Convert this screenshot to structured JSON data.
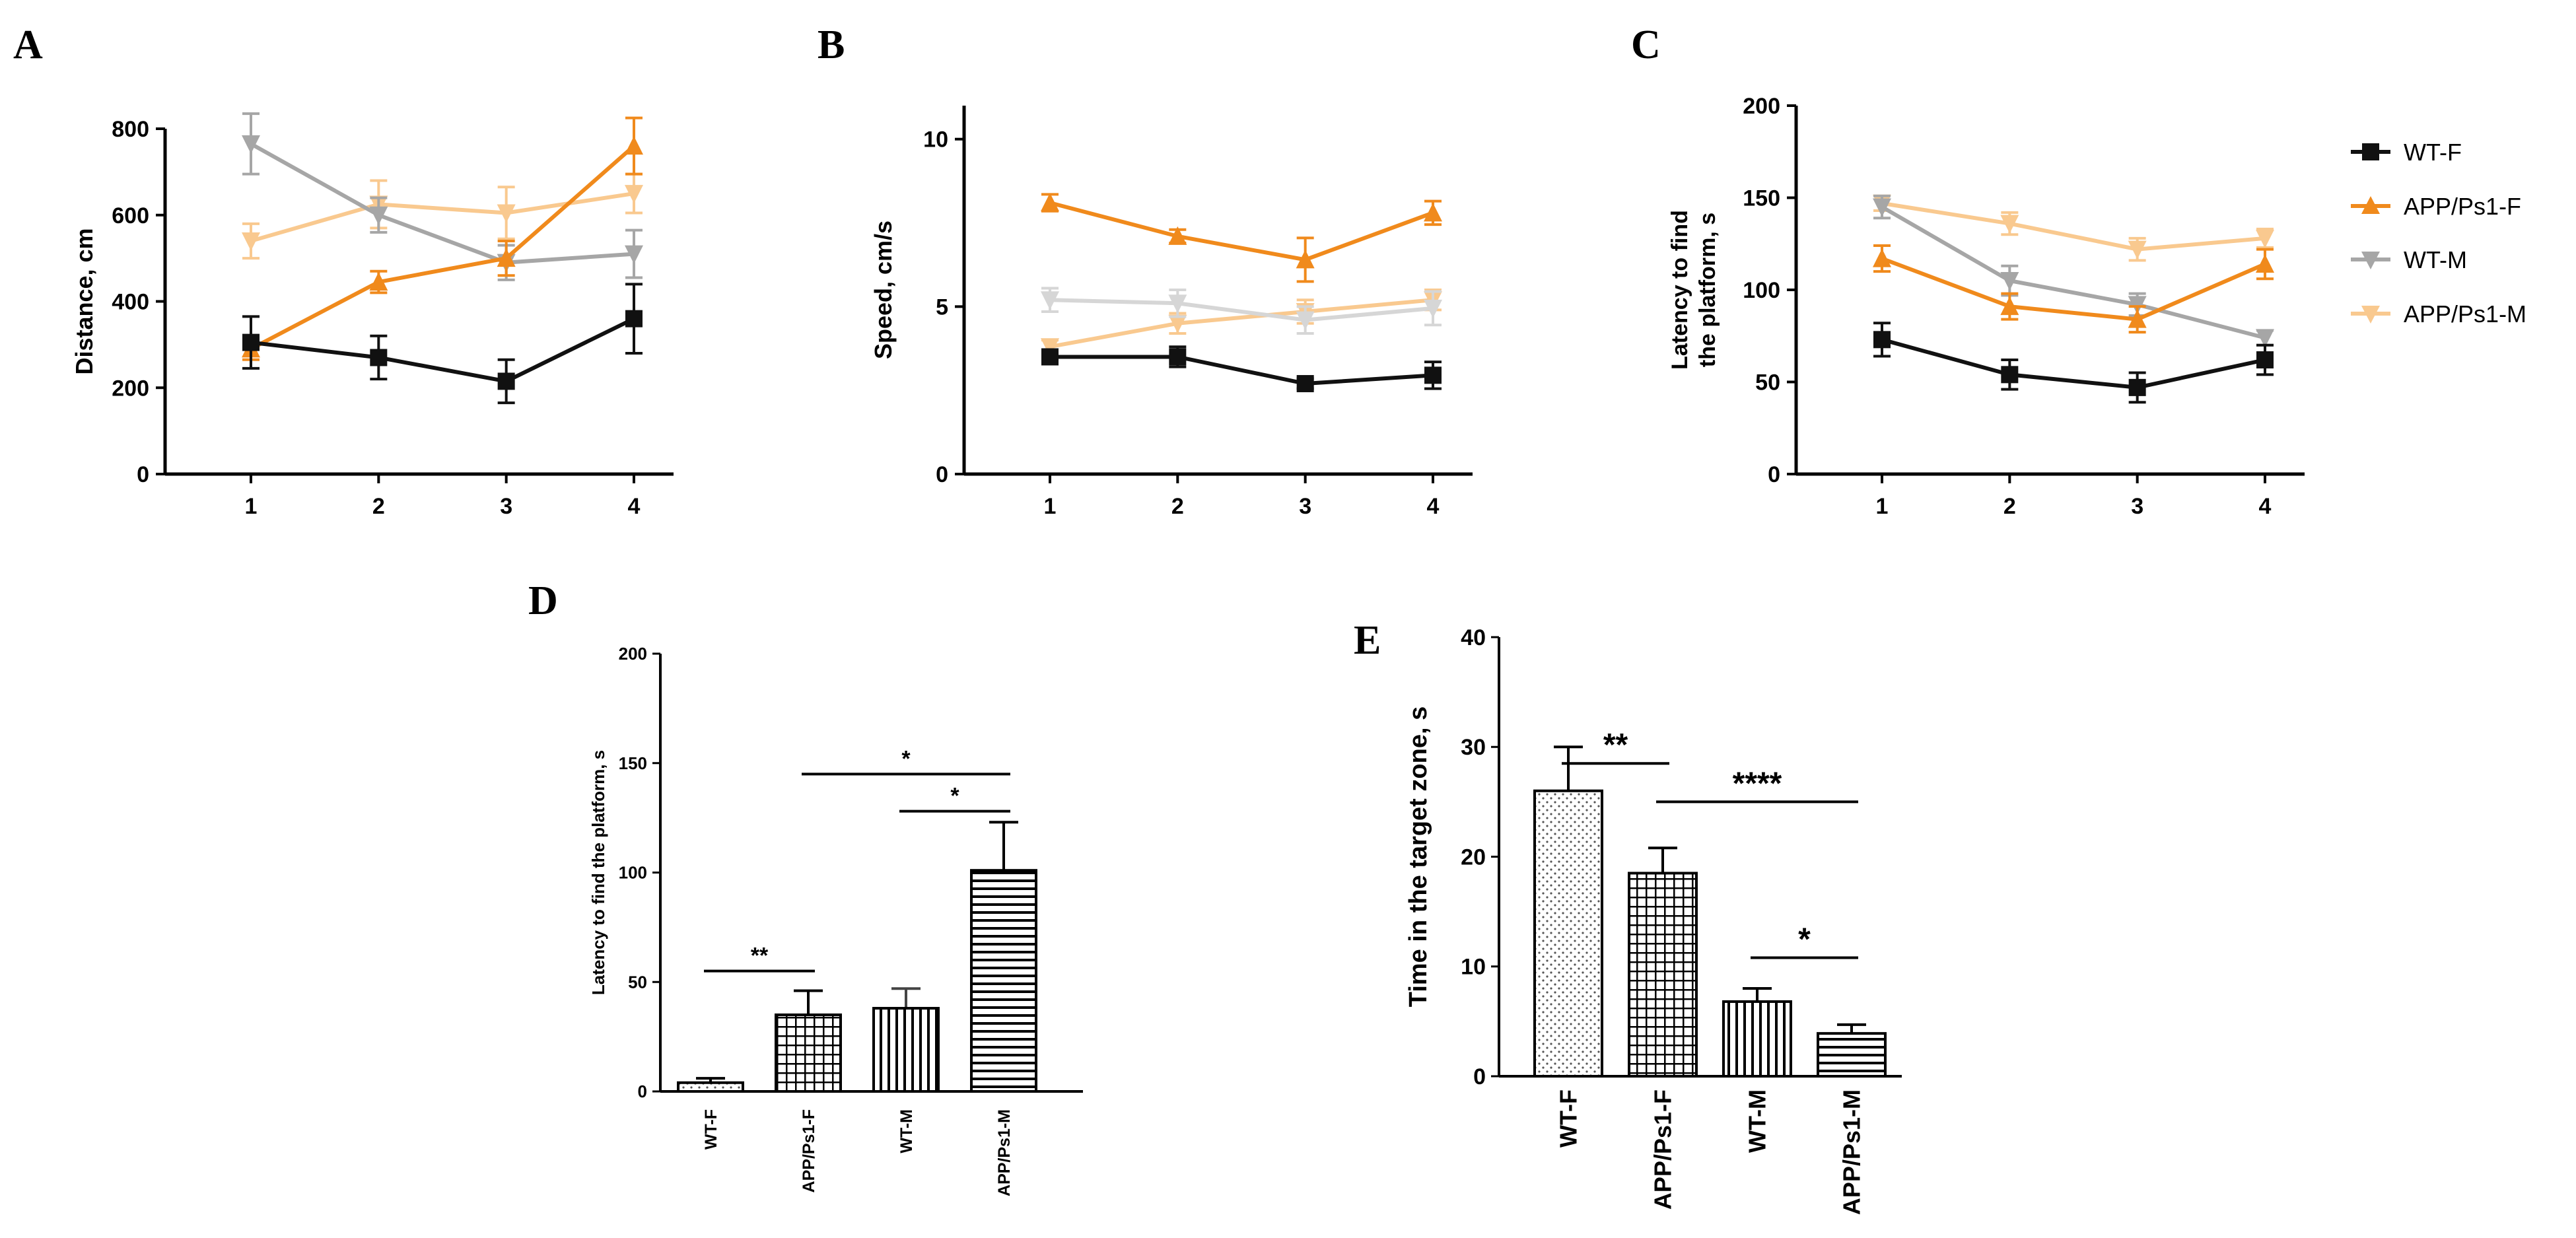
{
  "colors": {
    "WT-F": "#111111",
    "APP/Ps1-F": "#f08a1c",
    "WT-M": "#a6a6a6",
    "APP/Ps1-M": "#f9c98f",
    "WT-M_panelB": "#d6d6d6",
    "axis": "#000000"
  },
  "legend": {
    "items": [
      {
        "label": "WT-F",
        "marker": "square"
      },
      {
        "label": "APP/Ps1-F",
        "marker": "triangle-up"
      },
      {
        "label": "WT-M",
        "marker": "triangle-down"
      },
      {
        "label": "APP/Ps1-M",
        "marker": "triangle-down"
      }
    ]
  },
  "chart_data": [
    {
      "panel": "A",
      "type": "line",
      "ylabel": "Distance, cm",
      "ylim": [
        0,
        800
      ],
      "yticks": [
        0,
        200,
        400,
        600,
        800
      ],
      "x": [
        1,
        2,
        3,
        4
      ],
      "xticks": [
        "1",
        "2",
        "3",
        "4"
      ],
      "series": [
        {
          "name": "WT-F",
          "values": [
            305,
            270,
            215,
            360
          ],
          "errors": [
            60,
            50,
            50,
            80
          ]
        },
        {
          "name": "APP/Ps1-F",
          "values": [
            290,
            445,
            500,
            760
          ],
          "errors": [
            25,
            25,
            40,
            65
          ]
        },
        {
          "name": "WT-M",
          "values": [
            765,
            600,
            490,
            510
          ],
          "errors": [
            70,
            40,
            40,
            55
          ]
        },
        {
          "name": "APP/Ps1-M",
          "values": [
            540,
            625,
            605,
            650
          ],
          "errors": [
            40,
            55,
            60,
            45
          ]
        }
      ]
    },
    {
      "panel": "B",
      "type": "line",
      "ylabel": "Speed, cm/s",
      "ylim": [
        0,
        11
      ],
      "yticks": [
        0,
        5,
        10
      ],
      "x": [
        1,
        2,
        3,
        4
      ],
      "xticks": [
        "1",
        "2",
        "3",
        "4"
      ],
      "series": [
        {
          "name": "WT-F",
          "values": [
            3.5,
            3.5,
            2.7,
            2.95
          ],
          "errors": [
            0.2,
            0.3,
            0.15,
            0.4
          ]
        },
        {
          "name": "APP/Ps1-F",
          "values": [
            8.1,
            7.1,
            6.4,
            7.8
          ],
          "errors": [
            0.25,
            0.2,
            0.65,
            0.35
          ]
        },
        {
          "name": "WT-M",
          "values": [
            5.2,
            5.1,
            4.6,
            4.95
          ],
          "errors": [
            0.35,
            0.4,
            0.4,
            0.5
          ]
        },
        {
          "name": "APP/Ps1-M",
          "values": [
            3.8,
            4.5,
            4.85,
            5.2
          ],
          "errors": [
            0.2,
            0.3,
            0.35,
            0.3
          ]
        }
      ]
    },
    {
      "panel": "C",
      "type": "line",
      "ylabel": "Latency to find the platform, s",
      "ylabel_lines": [
        "Latency to find",
        "the platform, s"
      ],
      "ylim": [
        0,
        200
      ],
      "yticks": [
        0,
        50,
        100,
        150,
        200
      ],
      "x": [
        1,
        2,
        3,
        4
      ],
      "xticks": [
        "1",
        "2",
        "3",
        "4"
      ],
      "series": [
        {
          "name": "WT-F",
          "values": [
            73,
            54,
            47,
            62
          ],
          "errors": [
            9,
            8,
            8,
            8
          ]
        },
        {
          "name": "APP/Ps1-F",
          "values": [
            117,
            91,
            84,
            114
          ],
          "errors": [
            7,
            7,
            7,
            8
          ]
        },
        {
          "name": "WT-M",
          "values": [
            145,
            105,
            92,
            74
          ],
          "errors": [
            6,
            8,
            6,
            4
          ]
        },
        {
          "name": "APP/Ps1-M",
          "values": [
            147,
            136,
            122,
            128
          ],
          "errors": [
            4,
            6,
            6,
            5
          ]
        }
      ]
    },
    {
      "panel": "D",
      "type": "bar",
      "ylabel": "Latency to find the platform, s",
      "ylim": [
        0,
        200
      ],
      "yticks": [
        0,
        50,
        100,
        150,
        200
      ],
      "categories": [
        "WT-F",
        "APP/Ps1-F",
        "WT-M",
        "APP/Ps1-M"
      ],
      "values": [
        4,
        35,
        38,
        101
      ],
      "errors": [
        2,
        11,
        9,
        22
      ],
      "patterns": [
        "dots",
        "grid",
        "vlines",
        "hlines"
      ],
      "significance": [
        {
          "from": "WT-F",
          "to": "APP/Ps1-F",
          "label": "**",
          "y": 55
        },
        {
          "from": "WT-M",
          "to": "APP/Ps1-M",
          "label": "*",
          "y": 128
        },
        {
          "from": "APP/Ps1-F",
          "to": "APP/Ps1-M",
          "label": "*",
          "y": 145
        }
      ]
    },
    {
      "panel": "E",
      "type": "bar",
      "ylabel": "Time in the target zone, s",
      "ylim": [
        0,
        40
      ],
      "yticks": [
        0,
        10,
        20,
        30,
        40
      ],
      "categories": [
        "WT-F",
        "APP/Ps1-F",
        "WT-M",
        "APP/Ps1-M"
      ],
      "values": [
        26,
        18.5,
        6.8,
        3.9
      ],
      "errors": [
        4,
        2.3,
        1.2,
        0.8
      ],
      "patterns": [
        "dots",
        "grid",
        "vlines",
        "hlines"
      ],
      "significance": [
        {
          "from": "WT-F",
          "to": "APP/Ps1-F",
          "label": "**",
          "y": 28.5
        },
        {
          "from": "APP/Ps1-F",
          "to": "APP/Ps1-M",
          "label": "****",
          "y": 25
        },
        {
          "from": "WT-M",
          "to": "APP/Ps1-M",
          "label": "*",
          "y": 10.8
        }
      ]
    }
  ]
}
